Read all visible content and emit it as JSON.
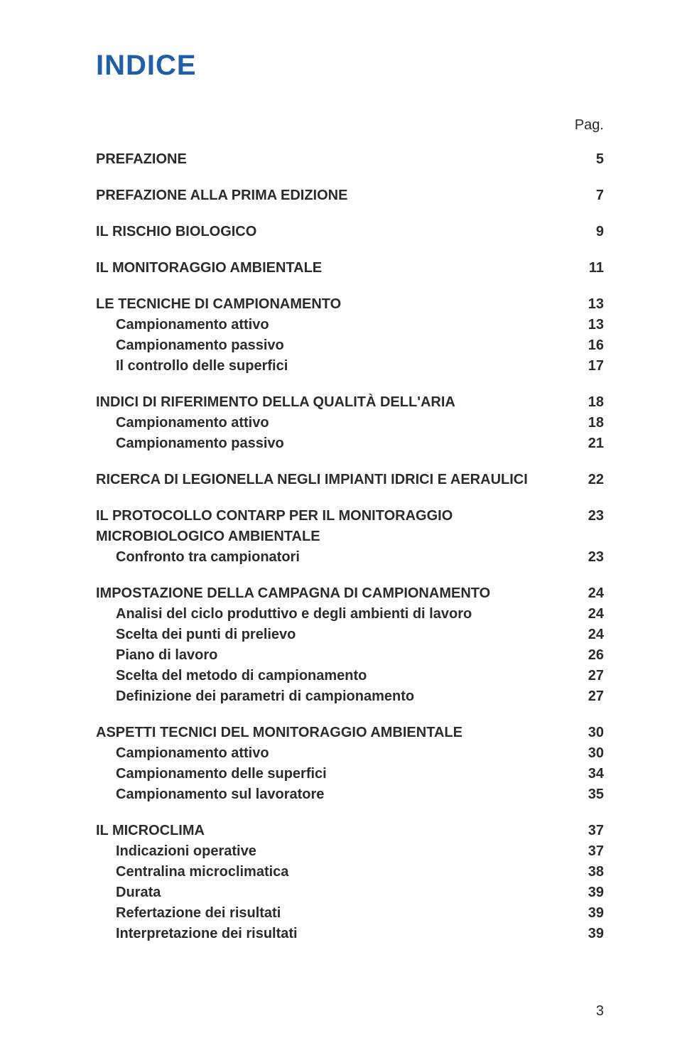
{
  "title": "INDICE",
  "pag_label": "Pag.",
  "footer_page_number": "3",
  "colors": {
    "title_color": "#1f5fa8",
    "text_color": "#2b2b2b",
    "background": "#ffffff"
  },
  "typography": {
    "title_fontsize": 40,
    "body_fontsize": 20,
    "title_font": "Trebuchet MS",
    "body_font": "Trebuchet MS"
  },
  "sections": [
    {
      "heading": {
        "label": "PREFAZIONE",
        "page": "5"
      },
      "items": []
    },
    {
      "heading": {
        "label": "PREFAZIONE ALLA PRIMA EDIZIONE",
        "page": "7"
      },
      "items": []
    },
    {
      "heading": {
        "label": "IL RISCHIO BIOLOGICO",
        "page": "9"
      },
      "items": []
    },
    {
      "heading": {
        "label": "IL MONITORAGGIO AMBIENTALE",
        "page": "11"
      },
      "items": []
    },
    {
      "heading": {
        "label": "LE TECNICHE DI CAMPIONAMENTO",
        "page": "13"
      },
      "items": [
        {
          "label": "Campionamento attivo",
          "page": "13"
        },
        {
          "label": "Campionamento passivo",
          "page": "16"
        },
        {
          "label": "Il controllo delle superfici",
          "page": "17"
        }
      ]
    },
    {
      "heading": {
        "label": "INDICI DI RIFERIMENTO DELLA QUALITÀ DELL'ARIA",
        "page": "18"
      },
      "items": [
        {
          "label": "Campionamento attivo",
          "page": "18"
        },
        {
          "label": "Campionamento passivo",
          "page": "21"
        }
      ]
    },
    {
      "heading": {
        "label": "RICERCA DI LEGIONELLA NEGLI IMPIANTI IDRICI E AERAULICI",
        "page": "22"
      },
      "items": []
    },
    {
      "heading": {
        "label": "IL PROTOCOLLO CONTARP PER IL MONITORAGGIO MICROBIOLOGICO AMBIENTALE",
        "page": "23"
      },
      "items": [
        {
          "label": "Confronto tra campionatori",
          "page": "23"
        }
      ]
    },
    {
      "heading": {
        "label": "IMPOSTAZIONE DELLA CAMPAGNA DI CAMPIONAMENTO",
        "page": "24"
      },
      "items": [
        {
          "label": "Analisi del ciclo produttivo e degli ambienti di lavoro",
          "page": "24"
        },
        {
          "label": "Scelta dei punti di prelievo",
          "page": "24"
        },
        {
          "label": "Piano di lavoro",
          "page": "26"
        },
        {
          "label": "Scelta del metodo di campionamento",
          "page": "27"
        },
        {
          "label": "Definizione dei parametri di campionamento",
          "page": "27"
        }
      ]
    },
    {
      "heading": {
        "label": "ASPETTI TECNICI DEL MONITORAGGIO AMBIENTALE",
        "page": "30"
      },
      "items": [
        {
          "label": "Campionamento attivo",
          "page": "30"
        },
        {
          "label": "Campionamento delle superfici",
          "page": "34"
        },
        {
          "label": "Campionamento sul lavoratore",
          "page": "35"
        }
      ]
    },
    {
      "heading": {
        "label": "IL MICROCLIMA",
        "page": "37"
      },
      "items": [
        {
          "label": "Indicazioni operative",
          "page": "37"
        },
        {
          "label": "Centralina microclimatica",
          "page": "38"
        },
        {
          "label": "Durata",
          "page": "39"
        },
        {
          "label": "Refertazione dei risultati",
          "page": "39"
        },
        {
          "label": "Interpretazione dei risultati",
          "page": "39"
        }
      ]
    }
  ]
}
